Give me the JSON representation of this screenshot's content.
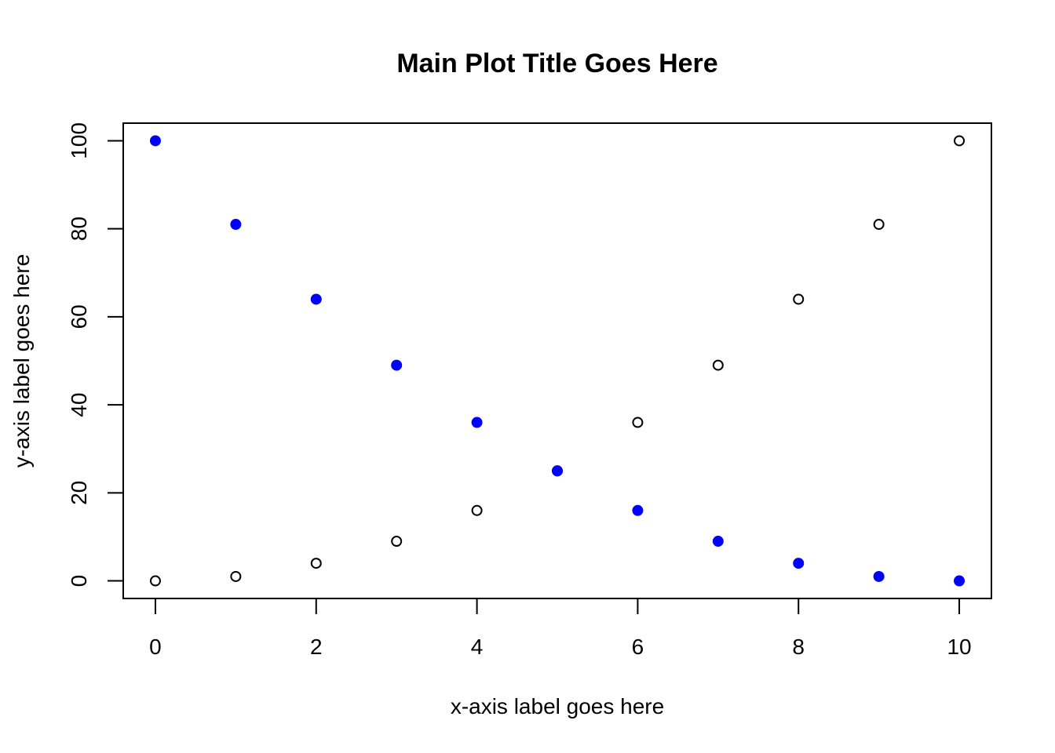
{
  "chart_data": {
    "type": "scatter",
    "title": "Main Plot Title Goes Here",
    "xlabel": "x-axis label goes here",
    "ylabel": "y-axis label goes here",
    "xlim": [
      -0.4,
      10.4
    ],
    "ylim": [
      -4,
      104
    ],
    "x_ticks": [
      0,
      2,
      4,
      6,
      8,
      10
    ],
    "y_ticks": [
      0,
      20,
      40,
      60,
      80,
      100
    ],
    "grid": false,
    "legend": "none",
    "series": [
      {
        "marker": "open-circle",
        "color": "#000000",
        "x": [
          0,
          1,
          2,
          3,
          4,
          5,
          6,
          7,
          8,
          9,
          10
        ],
        "y": [
          0,
          1,
          4,
          9,
          16,
          25,
          36,
          49,
          64,
          81,
          100
        ]
      },
      {
        "marker": "filled-circle",
        "color": "#0000FF",
        "x": [
          0,
          1,
          2,
          3,
          4,
          5,
          6,
          7,
          8,
          9,
          10
        ],
        "y": [
          100,
          81,
          64,
          49,
          36,
          25,
          16,
          9,
          4,
          1,
          0
        ]
      }
    ]
  }
}
